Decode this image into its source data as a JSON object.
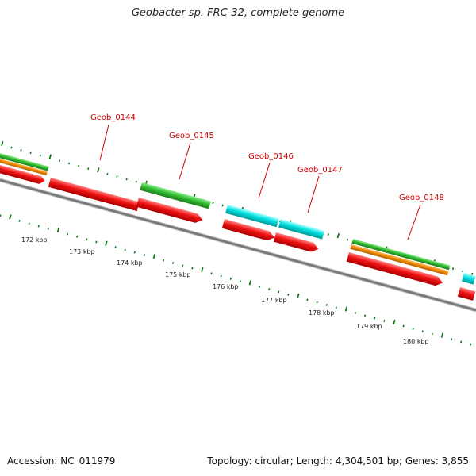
{
  "header": {
    "title": "Geobacter sp. FRC-32, complete genome"
  },
  "footer": {
    "accession": "Accession: NC_011979",
    "topology": "Topology: circular; Length: 4,304,501 bp; Genes: 3,855"
  },
  "colors": {
    "backbone": "#808080",
    "cds": "#ee1111",
    "rna": "#00dddd",
    "gene_green": "#33bb33",
    "gene_orange": "#ee8800",
    "tick": "#117711",
    "label": "#cc0000"
  },
  "gene_labels": [
    "Geob_0144",
    "Geob_0145",
    "Geob_0146",
    "Geob_0147",
    "Geob_0148"
  ],
  "scale_labels": [
    "172 kbp",
    "173 kbp",
    "174 kbp",
    "175 kbp",
    "176 kbp",
    "177 kbp",
    "178 kbp",
    "179 kbp",
    "180 kbp"
  ]
}
